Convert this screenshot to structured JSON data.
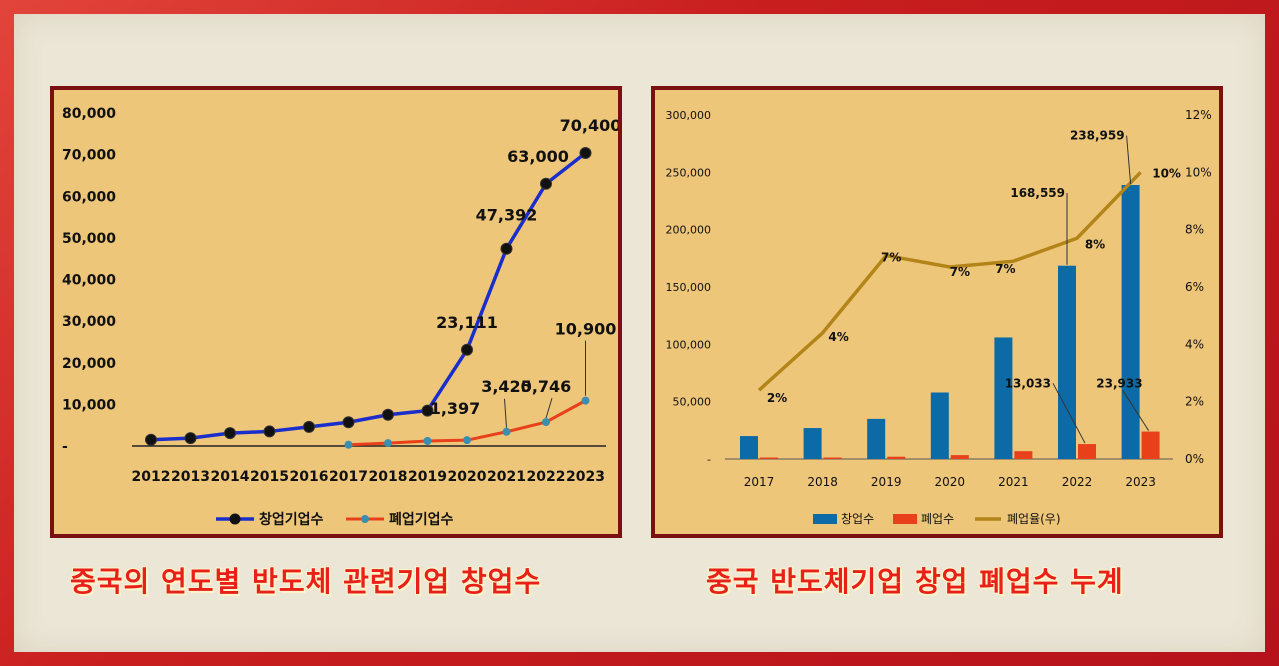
{
  "captions": {
    "left": "중국의 연도별 반도체 관련기업 창업수",
    "right": "중국 반도체기업 창업 폐업수 누계"
  },
  "colors": {
    "blue_line": "#1a2ecc",
    "orange_line": "#e8401a",
    "bar_blue": "#0c6aa6",
    "bar_orange": "#e8401a",
    "rate_line": "#b38418"
  },
  "chart_data": [
    {
      "type": "line",
      "categories": [
        "2012",
        "2013",
        "2014",
        "2015",
        "2016",
        "2017",
        "2018",
        "2019",
        "2020",
        "2021",
        "2022",
        "2023"
      ],
      "y_ticks": [
        "80,000",
        "70,000",
        "60,000",
        "50,000",
        "40,000",
        "30,000",
        "20,000",
        "10,000",
        "-"
      ],
      "ylim": [
        0,
        80000
      ],
      "series": [
        {
          "name": "창업기업수",
          "values": [
            1500,
            1900,
            3100,
            3500,
            4600,
            5700,
            7500,
            8500,
            23111,
            47392,
            63000,
            70400
          ],
          "labels": [
            "",
            "",
            "",
            "",
            "",
            "",
            "",
            "",
            "23,111",
            "47,392",
            "63,000",
            "70,400"
          ]
        },
        {
          "name": "폐업기업수",
          "values": [
            null,
            null,
            null,
            null,
            null,
            300,
            700,
            1200,
            1397,
            3420,
            5746,
            10900
          ],
          "labels": [
            "",
            "",
            "",
            "",
            "",
            "",
            "",
            "",
            "1,397",
            "3,420",
            "5,746",
            "10,900"
          ]
        }
      ],
      "legend": "bottom"
    },
    {
      "type": "bar",
      "categories": [
        "2017",
        "2018",
        "2019",
        "2020",
        "2021",
        "2022",
        "2023"
      ],
      "y_left_ticks": [
        "300,000",
        "250,000",
        "200,000",
        "150,000",
        "100,000",
        "50,000",
        "-"
      ],
      "y_right_ticks": [
        "12%",
        "10%",
        "8%",
        "6%",
        "4%",
        "2%",
        "0%"
      ],
      "ylim_left": [
        0,
        300000
      ],
      "ylim_right": [
        0,
        12
      ],
      "series": [
        {
          "name": "창업수",
          "values": [
            20000,
            27000,
            35000,
            58000,
            106000,
            168559,
            238959
          ],
          "labels": [
            "",
            "",
            "",
            "",
            "",
            "168,559",
            "238,959"
          ]
        },
        {
          "name": "폐업수",
          "values": [
            300,
            700,
            2000,
            3400,
            6800,
            13033,
            23933
          ],
          "labels": [
            "",
            "",
            "",
            "",
            "",
            "13,033",
            "23,933"
          ]
        },
        {
          "name": "폐업율(우)",
          "values": [
            2.4,
            4.4,
            7.1,
            6.7,
            6.9,
            7.7,
            10
          ],
          "labels": [
            "2%",
            "4%",
            "7%",
            "7%",
            "7%",
            "8%",
            "10%"
          ]
        }
      ],
      "legend": "bottom"
    }
  ]
}
